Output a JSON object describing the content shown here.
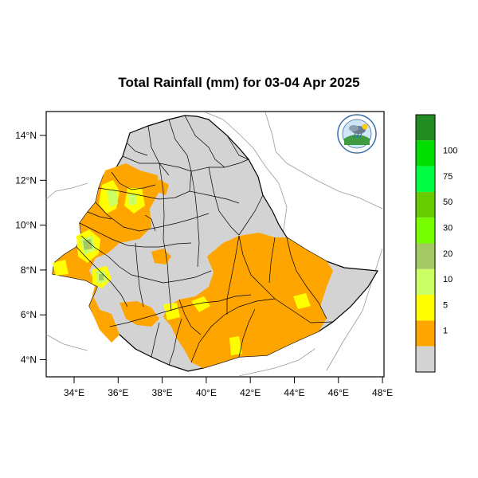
{
  "title": "Total Rainfall (mm) for 03-04 Apr 2025",
  "map": {
    "lon_ticks": [
      "34°E",
      "36°E",
      "38°E",
      "40°E",
      "42°E",
      "44°E",
      "46°E",
      "48°E"
    ],
    "lat_ticks": [
      "14°N",
      "12°N",
      "10°N",
      "8°N",
      "6°N",
      "4°N"
    ],
    "lon_range": [
      32.9,
      48.3
    ],
    "lat_range": [
      3.2,
      15.0
    ],
    "logo": "ethiopian-meteorology-institute-logo"
  },
  "legend": {
    "items": [
      {
        "label": "",
        "color": "#228b22"
      },
      {
        "label": "100",
        "color": "#00dd00"
      },
      {
        "label": "75",
        "color": "#00ff44"
      },
      {
        "label": "50",
        "color": "#66cc00"
      },
      {
        "label": "30",
        "color": "#77ff00"
      },
      {
        "label": "20",
        "color": "#a4c864"
      },
      {
        "label": "10",
        "color": "#ccff66"
      },
      {
        "label": "5",
        "color": "#ffff00"
      },
      {
        "label": "1",
        "color": "#ffa500"
      },
      {
        "label": "",
        "color": "#d3d3d3"
      }
    ]
  }
}
